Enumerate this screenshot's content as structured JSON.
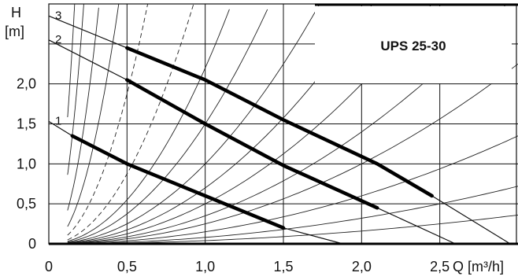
{
  "chart_data": {
    "type": "line",
    "title": "UPS 25-30",
    "ylabel": "H",
    "yunit": "[m]",
    "xlabel": "Q [m³/h]",
    "xlim": [
      0,
      3.0
    ],
    "ylim": [
      0,
      3.0
    ],
    "x_tick_labels": [
      "0",
      "0,5",
      "1,0",
      "1,5",
      "2,0",
      "2,5"
    ],
    "y_tick_labels": [
      "0",
      "0,5",
      "1,0",
      "1,5",
      "2,0"
    ],
    "x_ticks": [
      0,
      0.5,
      1.0,
      1.5,
      2.0,
      2.5
    ],
    "y_ticks": [
      0,
      0.5,
      1.0,
      1.5,
      2.0
    ],
    "grid": true,
    "series": [
      {
        "name": "1",
        "operating_range": {
          "x": [
            0.15,
            0.5,
            1.0,
            1.5
          ],
          "y": [
            1.35,
            1.0,
            0.6,
            0.2
          ]
        },
        "full_curve": {
          "x": [
            0.0,
            0.15,
            0.5,
            1.0,
            1.5,
            1.88
          ],
          "y": [
            1.53,
            1.35,
            1.0,
            0.6,
            0.2,
            0.0
          ]
        }
      },
      {
        "name": "2",
        "operating_range": {
          "x": [
            0.5,
            1.0,
            1.5,
            2.1
          ],
          "y": [
            2.05,
            1.5,
            0.98,
            0.45
          ]
        },
        "full_curve": {
          "x": [
            0.0,
            0.5,
            1.0,
            1.5,
            2.1,
            2.6
          ],
          "y": [
            2.55,
            2.05,
            1.5,
            0.98,
            0.45,
            0.0
          ]
        }
      },
      {
        "name": "3",
        "operating_range": {
          "x": [
            0.5,
            1.0,
            1.5,
            2.1,
            2.45
          ],
          "y": [
            2.45,
            2.05,
            1.55,
            1.0,
            0.6
          ]
        },
        "full_curve": {
          "x": [
            0.0,
            0.5,
            1.0,
            1.5,
            2.1,
            2.45,
            2.95
          ],
          "y": [
            2.85,
            2.45,
            2.05,
            1.55,
            1.0,
            0.6,
            0.0
          ]
        }
      }
    ],
    "system_curve_coefficients": [
      3.5,
      7.5,
      15,
      29,
      60,
      110,
      220
    ],
    "system_curve_coefficients_thin": [
      0.04,
      0.08,
      0.15,
      0.25,
      0.35,
      0.5,
      0.7,
      1.0,
      1.5,
      2.2
    ]
  }
}
